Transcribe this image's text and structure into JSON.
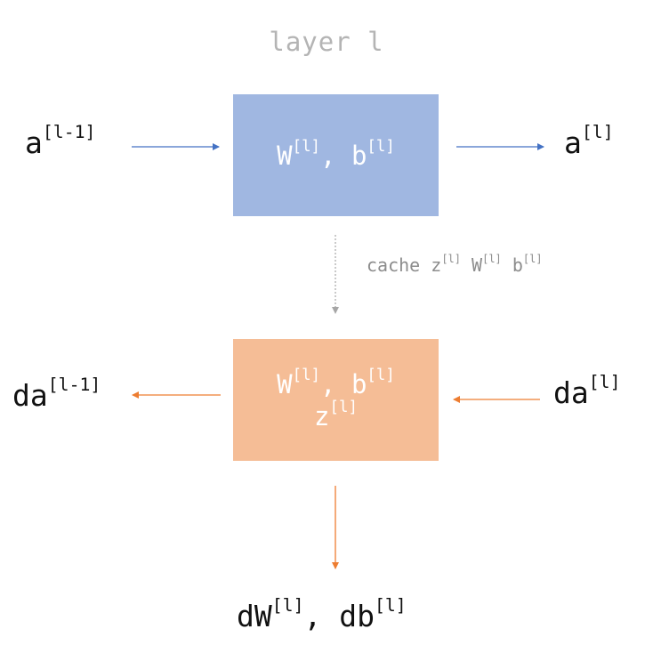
{
  "title": "layer l",
  "forward": {
    "box_line1": {
      "w": "W",
      "sep": ", ",
      "b": "b",
      "sup": "[l]"
    },
    "input": {
      "base": "a",
      "sup": "[l-1]"
    },
    "output": {
      "base": "a",
      "sup": "[l]"
    }
  },
  "cache": {
    "word": "cache",
    "z": "z",
    "w": "W",
    "b": "b",
    "sup": "[l]"
  },
  "backward": {
    "box_line1": {
      "w": "W",
      "sep": ", ",
      "b": "b",
      "sup": "[l]"
    },
    "box_line2": {
      "z": "z",
      "sup": "[l]"
    },
    "input": {
      "base": "da",
      "sup": "[l]"
    },
    "output": {
      "base": "da",
      "sup": "[l-1]"
    },
    "grads": {
      "dw": "dW",
      "sep": ", ",
      "db": "db",
      "sup": "[l]"
    }
  },
  "colors": {
    "forward_arrow": "#4472c4",
    "backward_arrow": "#ed7d31",
    "cache_arrow": "#a6a6a6",
    "forward_box": "#a0b7e1",
    "backward_box": "#f5bd96"
  }
}
